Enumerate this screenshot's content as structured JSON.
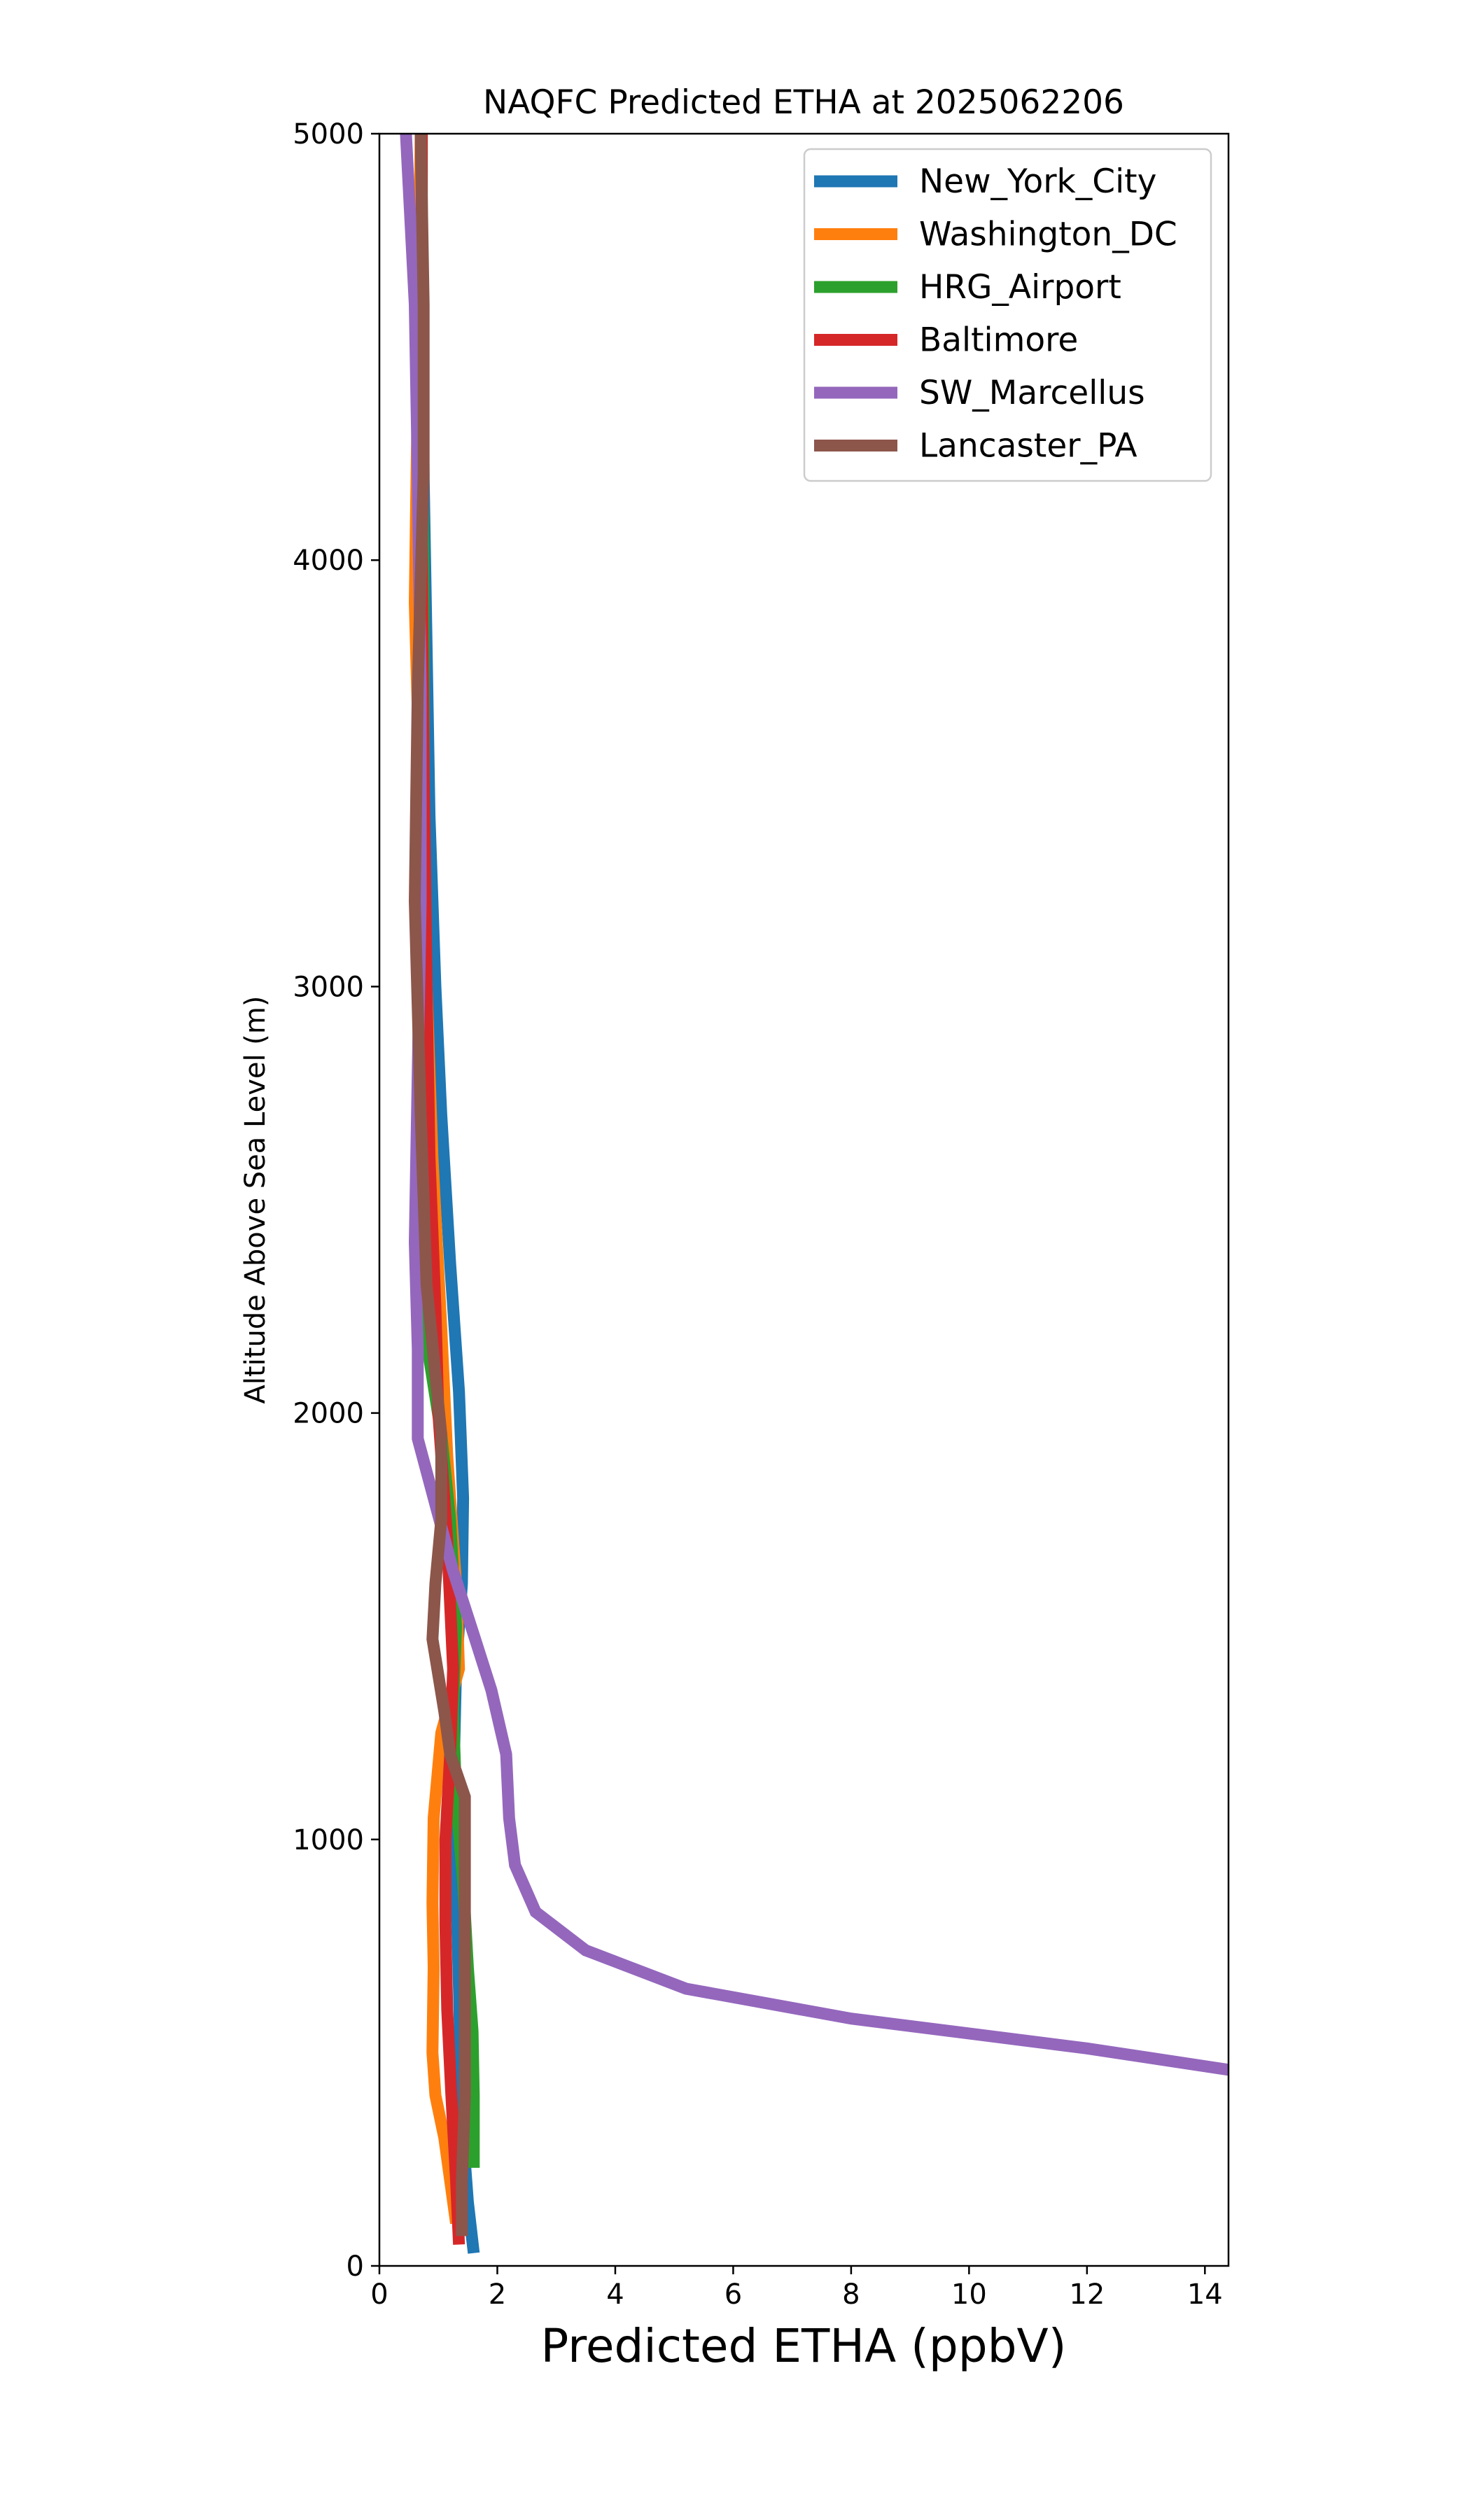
{
  "chart_data": {
    "type": "line",
    "title": "NAQFC Predicted ETHA at 2025062206",
    "xlabel": "Predicted ETHA (ppbV)",
    "ylabel": "Altitude Above Sea Level (m)",
    "xlim": [
      0,
      14.4
    ],
    "ylim": [
      0,
      5000
    ],
    "xticks": [
      0,
      2,
      4,
      6,
      8,
      10,
      12,
      14
    ],
    "yticks": [
      0,
      1000,
      2000,
      3000,
      4000,
      5000
    ],
    "grid": false,
    "legend_position": "top-right",
    "series": [
      {
        "name": "New_York_City",
        "color": "#1f77b4",
        "points": [
          [
            1.6,
            30
          ],
          [
            1.5,
            150
          ],
          [
            1.42,
            300
          ],
          [
            1.38,
            450
          ],
          [
            1.35,
            650
          ],
          [
            1.3,
            900
          ],
          [
            1.25,
            1100
          ],
          [
            1.3,
            1400
          ],
          [
            1.4,
            1600
          ],
          [
            1.42,
            1800
          ],
          [
            1.35,
            2050
          ],
          [
            1.2,
            2350
          ],
          [
            1.05,
            2700
          ],
          [
            0.95,
            3000
          ],
          [
            0.85,
            3400
          ],
          [
            0.8,
            3800
          ],
          [
            0.75,
            4200
          ],
          [
            0.72,
            4600
          ],
          [
            0.7,
            5000
          ]
        ]
      },
      {
        "name": "Washington_DC",
        "color": "#ff7f0e",
        "points": [
          [
            1.3,
            100
          ],
          [
            1.1,
            300
          ],
          [
            0.95,
            400
          ],
          [
            0.9,
            500
          ],
          [
            0.92,
            700
          ],
          [
            0.9,
            850
          ],
          [
            0.92,
            1050
          ],
          [
            1.05,
            1250
          ],
          [
            1.35,
            1400
          ],
          [
            1.3,
            1600
          ],
          [
            1.15,
            1900
          ],
          [
            1.05,
            2200
          ],
          [
            0.9,
            2600
          ],
          [
            0.8,
            3000
          ],
          [
            0.7,
            3400
          ],
          [
            0.6,
            3900
          ],
          [
            0.65,
            4400
          ],
          [
            0.7,
            5000
          ]
        ]
      },
      {
        "name": "HRG_Airport",
        "color": "#2ca02c",
        "points": [
          [
            1.6,
            230
          ],
          [
            1.6,
            400
          ],
          [
            1.58,
            550
          ],
          [
            1.5,
            700
          ],
          [
            1.42,
            900
          ],
          [
            1.3,
            1100
          ],
          [
            1.25,
            1300
          ],
          [
            1.3,
            1500
          ],
          [
            1.2,
            1750
          ],
          [
            1.05,
            1950
          ],
          [
            0.65,
            2300
          ],
          [
            0.68,
            2600
          ],
          [
            0.72,
            2900
          ],
          [
            0.75,
            3300
          ],
          [
            0.75,
            3800
          ],
          [
            0.73,
            4300
          ],
          [
            0.72,
            4700
          ],
          [
            0.72,
            5000
          ]
        ]
      },
      {
        "name": "Baltimore",
        "color": "#d62728",
        "points": [
          [
            1.35,
            50
          ],
          [
            1.3,
            200
          ],
          [
            1.22,
            400
          ],
          [
            1.15,
            600
          ],
          [
            1.12,
            800
          ],
          [
            1.12,
            1000
          ],
          [
            1.2,
            1200
          ],
          [
            1.25,
            1400
          ],
          [
            1.15,
            1700
          ],
          [
            1.0,
            2000
          ],
          [
            0.95,
            2250
          ],
          [
            0.85,
            2600
          ],
          [
            0.8,
            3000
          ],
          [
            0.75,
            3500
          ],
          [
            0.72,
            4000
          ],
          [
            0.72,
            4500
          ],
          [
            0.72,
            5000
          ]
        ]
      },
      {
        "name": "SW_Marcellus",
        "color": "#9467bd",
        "points": [
          [
            14.4,
            460
          ],
          [
            12,
            510
          ],
          [
            8,
            580
          ],
          [
            5.2,
            650
          ],
          [
            3.5,
            740
          ],
          [
            2.65,
            830
          ],
          [
            2.3,
            940
          ],
          [
            2.2,
            1050
          ],
          [
            2.15,
            1200
          ],
          [
            1.9,
            1350
          ],
          [
            1.6,
            1480
          ],
          [
            1.25,
            1630
          ],
          [
            0.65,
            1940
          ],
          [
            0.65,
            2150
          ],
          [
            0.6,
            2400
          ],
          [
            0.65,
            2800
          ],
          [
            0.7,
            3200
          ],
          [
            0.7,
            3700
          ],
          [
            0.65,
            4200
          ],
          [
            0.6,
            4600
          ],
          [
            0.45,
            5000
          ]
        ]
      },
      {
        "name": "Lancaster_PA",
        "color": "#8c564b",
        "points": [
          [
            1.4,
            70
          ],
          [
            1.4,
            200
          ],
          [
            1.45,
            400
          ],
          [
            1.45,
            600
          ],
          [
            1.45,
            800
          ],
          [
            1.45,
            950
          ],
          [
            1.45,
            1100
          ],
          [
            1.2,
            1200
          ],
          [
            1.1,
            1300
          ],
          [
            0.9,
            1470
          ],
          [
            0.95,
            1600
          ],
          [
            1.05,
            1750
          ],
          [
            1.05,
            1950
          ],
          [
            0.8,
            2300
          ],
          [
            0.7,
            2700
          ],
          [
            0.6,
            3200
          ],
          [
            0.65,
            3700
          ],
          [
            0.75,
            4200
          ],
          [
            0.75,
            4600
          ],
          [
            0.7,
            5000
          ]
        ]
      }
    ]
  }
}
